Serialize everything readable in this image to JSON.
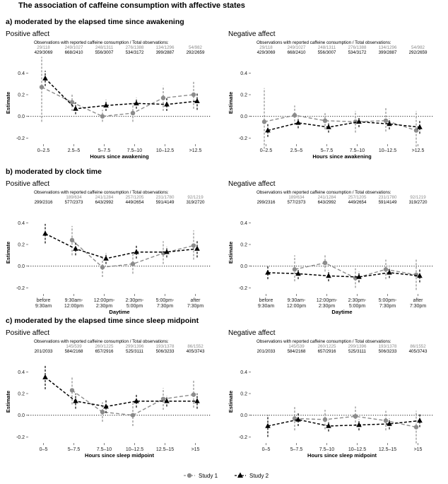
{
  "figure": {
    "title": "The association of caffeine consumption with affective states",
    "obs_header": "Observations with reported caffeine consumption / Total observations:",
    "y_label": "Estimate",
    "legend": [
      {
        "name": "Study 1",
        "color": "#8c8c8c",
        "marker": "circle",
        "dash": true
      },
      {
        "name": "Study 2",
        "color": "#000000",
        "marker": "triangle",
        "dash": true
      }
    ]
  },
  "sections": [
    {
      "title": "a) moderated by the elapsed time since awakening",
      "x_label": "Hours since awakening",
      "categories": [
        [
          "0–2.5"
        ],
        [
          "2.5–5"
        ],
        [
          "5–7.5"
        ],
        [
          "7.5–10"
        ],
        [
          "10–12.5"
        ],
        [
          ">12.5"
        ]
      ],
      "obs_study1": [
        "29/118",
        "249/1027",
        "248/1311",
        "276/1388",
        "134/1296",
        "54/982"
      ],
      "obs_study2": [
        "429/3069",
        "668/2410",
        "556/3007",
        "534/3172",
        "399/2887",
        "292/2659"
      ],
      "panels": [
        {
          "title": "Positive affect",
          "series": [
            {
              "name": "Study 1",
              "values": [
                0.27,
                0.13,
                0.0,
                0.03,
                0.17,
                0.2
              ],
              "lower": [
                -0.05,
                0.05,
                -0.05,
                -0.05,
                0.05,
                0.07
              ],
              "upper": [
                0.55,
                0.2,
                0.06,
                0.12,
                0.28,
                0.32
              ]
            },
            {
              "name": "Study 2",
              "values": [
                0.35,
                0.07,
                0.1,
                0.12,
                0.11,
                0.14
              ],
              "lower": [
                0.28,
                0.02,
                0.05,
                0.07,
                0.05,
                0.06
              ],
              "upper": [
                0.42,
                0.13,
                0.15,
                0.17,
                0.17,
                0.21
              ]
            }
          ]
        },
        {
          "title": "Negative affect",
          "series": [
            {
              "name": "Study 1",
              "values": [
                -0.05,
                0.01,
                -0.04,
                -0.05,
                -0.04,
                -0.13
              ],
              "lower": [
                -0.3,
                -0.08,
                -0.12,
                -0.15,
                -0.14,
                -0.28
              ],
              "upper": [
                0.26,
                0.1,
                0.04,
                0.05,
                0.08,
                0.05
              ]
            },
            {
              "name": "Study 2",
              "values": [
                -0.13,
                -0.06,
                -0.1,
                -0.05,
                -0.07,
                -0.1
              ],
              "lower": [
                -0.19,
                -0.11,
                -0.15,
                -0.1,
                -0.12,
                -0.16
              ],
              "upper": [
                -0.07,
                -0.01,
                -0.05,
                0.0,
                -0.02,
                -0.04
              ]
            }
          ]
        }
      ]
    },
    {
      "title": "b) moderated by clock time",
      "x_label": "Daytime",
      "categories": [
        [
          "before",
          "9:30am"
        ],
        [
          "9:30am-",
          "12:00pm"
        ],
        [
          "12:00pm-",
          "2:30pm"
        ],
        [
          "2:30pm-",
          "5:00pm"
        ],
        [
          "5:00pm-",
          "7:30pm"
        ],
        [
          "after",
          "7:30pm"
        ]
      ],
      "obs_study1": [
        "",
        "189/634",
        "241/1284",
        "257/1205",
        "231/1780",
        "92/1219"
      ],
      "obs_study2": [
        "299/2316",
        "577/2373",
        "643/2992",
        "449/2654",
        "591/4149",
        "319/2720"
      ],
      "panels": [
        {
          "title": "Positive affect",
          "series": [
            {
              "name": "Study 1",
              "values": [
                null,
                0.24,
                -0.01,
                0.02,
                0.12,
                0.19
              ],
              "lower": [
                null,
                0.1,
                -0.1,
                -0.07,
                0.02,
                0.06
              ],
              "upper": [
                null,
                0.37,
                0.08,
                0.12,
                0.23,
                0.33
              ]
            },
            {
              "name": "Study 2",
              "values": [
                0.3,
                0.16,
                0.07,
                0.13,
                0.13,
                0.16
              ],
              "lower": [
                0.21,
                0.1,
                0.02,
                0.07,
                0.08,
                0.08
              ],
              "upper": [
                0.39,
                0.22,
                0.12,
                0.19,
                0.18,
                0.24
              ]
            }
          ]
        },
        {
          "title": "Negative affect",
          "series": [
            {
              "name": "Study 1",
              "values": [
                null,
                -0.03,
                0.03,
                -0.11,
                -0.03,
                -0.08
              ],
              "lower": [
                null,
                -0.14,
                -0.05,
                -0.2,
                -0.12,
                -0.22
              ],
              "upper": [
                null,
                0.1,
                0.1,
                -0.02,
                0.06,
                0.06
              ]
            },
            {
              "name": "Study 2",
              "values": [
                -0.06,
                -0.07,
                -0.09,
                -0.1,
                -0.06,
                -0.09
              ],
              "lower": [
                -0.12,
                -0.12,
                -0.14,
                -0.15,
                -0.11,
                -0.15
              ],
              "upper": [
                0.0,
                -0.02,
                -0.04,
                -0.05,
                -0.01,
                -0.03
              ]
            }
          ]
        }
      ]
    },
    {
      "title": "c) moderated by the elapsed time since sleep midpoint",
      "x_label": "Hours since sleep midpoint",
      "categories": [
        [
          "0–5"
        ],
        [
          "5–7.5"
        ],
        [
          "7.5–10"
        ],
        [
          "10–12.5"
        ],
        [
          "12.5–15"
        ],
        [
          ">15"
        ]
      ],
      "obs_study1": [
        "",
        "145/539",
        "260/1225",
        "299/1396",
        "193/1378",
        "86/1552"
      ],
      "obs_study2": [
        "201/2033",
        "584/2168",
        "657/2916",
        "525/3111",
        "506/3233",
        "405/3743"
      ],
      "panels": [
        {
          "title": "Positive affect",
          "series": [
            {
              "name": "Study 1",
              "values": [
                null,
                0.23,
                0.03,
                0.0,
                0.15,
                0.19
              ],
              "lower": [
                null,
                0.1,
                -0.06,
                -0.1,
                0.05,
                0.07
              ],
              "upper": [
                null,
                0.36,
                0.12,
                0.11,
                0.25,
                0.32
              ]
            },
            {
              "name": "Study 2",
              "values": [
                0.35,
                0.13,
                0.08,
                0.13,
                0.13,
                0.13
              ],
              "lower": [
                0.24,
                0.06,
                0.02,
                0.07,
                0.08,
                0.06
              ],
              "upper": [
                0.46,
                0.2,
                0.14,
                0.19,
                0.18,
                0.2
              ]
            }
          ]
        },
        {
          "title": "Negative affect",
          "series": [
            {
              "name": "Study 1",
              "values": [
                null,
                -0.03,
                -0.04,
                -0.01,
                -0.05,
                -0.11
              ],
              "lower": [
                null,
                -0.14,
                -0.13,
                -0.1,
                -0.14,
                -0.26
              ],
              "upper": [
                null,
                0.08,
                0.05,
                0.08,
                0.04,
                0.04
              ]
            },
            {
              "name": "Study 2",
              "values": [
                -0.1,
                -0.04,
                -0.1,
                -0.09,
                -0.08,
                -0.05
              ],
              "lower": [
                -0.2,
                -0.1,
                -0.15,
                -0.14,
                -0.13,
                -0.11
              ],
              "upper": [
                0.0,
                0.02,
                -0.05,
                -0.04,
                -0.03,
                0.01
              ]
            }
          ]
        }
      ]
    }
  ],
  "chart_data": {
    "type": "scatter",
    "title": "The association of caffeine consumption with affective states",
    "ylabel": "Estimate",
    "ylim": [
      -0.25,
      0.5
    ],
    "yticks": [
      -0.2,
      0.0,
      0.2,
      0.4
    ],
    "reference_line": 0,
    "grid": false,
    "legend_position": "bottom",
    "series_names": [
      "Study 1",
      "Study 2"
    ]
  }
}
